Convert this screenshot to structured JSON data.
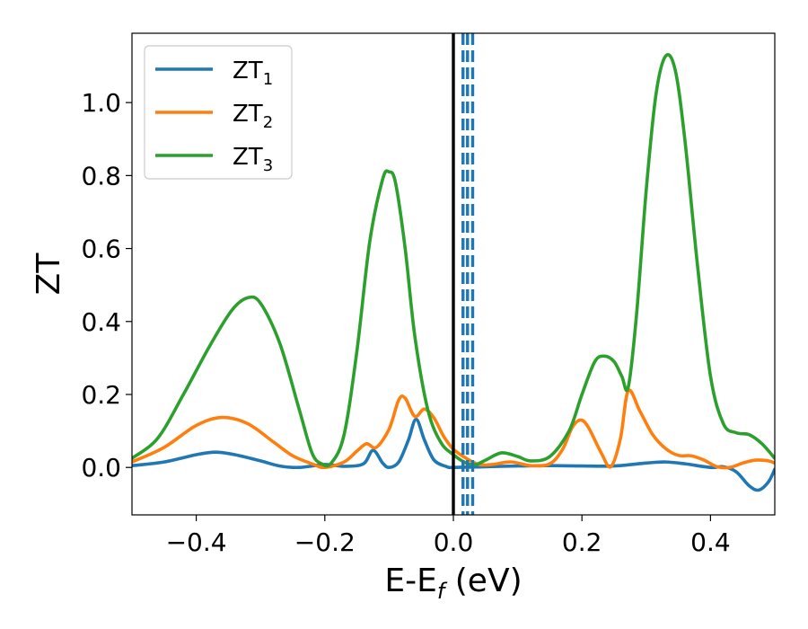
{
  "chart_data": {
    "type": "line",
    "xlabel": "E-E",
    "xlabel_sub": "f",
    "xlabel_unit": " (eV)",
    "ylabel": "ZT",
    "xlim": [
      -0.5,
      0.5
    ],
    "ylim": [
      -0.13,
      1.19
    ],
    "x_ticks": [
      -0.4,
      -0.2,
      0.0,
      0.2,
      0.4
    ],
    "x_tick_labels": [
      "−0.4",
      "−0.2",
      "0.0",
      "0.2",
      "0.4"
    ],
    "y_ticks": [
      0.0,
      0.2,
      0.4,
      0.6,
      0.8,
      1.0
    ],
    "y_tick_labels": [
      "0.0",
      "0.2",
      "0.4",
      "0.6",
      "0.8",
      "1.0"
    ],
    "grid": false,
    "legend_position": "top-left",
    "series": [
      {
        "name": "ZT",
        "name_sub": "1",
        "color": "#1f77b4",
        "points": [
          [
            -0.5,
            0.005
          ],
          [
            -0.45,
            0.015
          ],
          [
            -0.4,
            0.035
          ],
          [
            -0.37,
            0.042
          ],
          [
            -0.34,
            0.035
          ],
          [
            -0.3,
            0.018
          ],
          [
            -0.27,
            0.004
          ],
          [
            -0.24,
            0.0
          ],
          [
            -0.2,
            0.008
          ],
          [
            -0.17,
            0.003
          ],
          [
            -0.14,
            0.01
          ],
          [
            -0.125,
            0.047
          ],
          [
            -0.11,
            0.012
          ],
          [
            -0.1,
            0.0
          ],
          [
            -0.085,
            0.015
          ],
          [
            -0.07,
            0.075
          ],
          [
            -0.058,
            0.132
          ],
          [
            -0.045,
            0.075
          ],
          [
            -0.03,
            0.02
          ],
          [
            -0.01,
            0.002
          ],
          [
            0.0,
            0.0
          ],
          [
            0.05,
            0.002
          ],
          [
            0.1,
            0.004
          ],
          [
            0.15,
            0.005
          ],
          [
            0.2,
            0.004
          ],
          [
            0.25,
            0.004
          ],
          [
            0.3,
            0.012
          ],
          [
            0.33,
            0.015
          ],
          [
            0.36,
            0.01
          ],
          [
            0.4,
            0.0
          ],
          [
            0.42,
            0.002
          ],
          [
            0.44,
            -0.012
          ],
          [
            0.46,
            -0.05
          ],
          [
            0.475,
            -0.062
          ],
          [
            0.49,
            -0.04
          ],
          [
            0.5,
            -0.005
          ]
        ]
      },
      {
        "name": "ZT",
        "name_sub": "2",
        "color": "#ff7f0e",
        "points": [
          [
            -0.5,
            0.015
          ],
          [
            -0.45,
            0.055
          ],
          [
            -0.4,
            0.115
          ],
          [
            -0.36,
            0.137
          ],
          [
            -0.32,
            0.12
          ],
          [
            -0.28,
            0.07
          ],
          [
            -0.25,
            0.032
          ],
          [
            -0.22,
            0.01
          ],
          [
            -0.2,
            0.0
          ],
          [
            -0.17,
            0.015
          ],
          [
            -0.15,
            0.045
          ],
          [
            -0.135,
            0.065
          ],
          [
            -0.12,
            0.055
          ],
          [
            -0.1,
            0.105
          ],
          [
            -0.085,
            0.185
          ],
          [
            -0.075,
            0.19
          ],
          [
            -0.06,
            0.14
          ],
          [
            -0.045,
            0.16
          ],
          [
            -0.03,
            0.135
          ],
          [
            -0.015,
            0.085
          ],
          [
            0.0,
            0.05
          ],
          [
            0.02,
            0.025
          ],
          [
            0.04,
            0.008
          ],
          [
            0.06,
            0.008
          ],
          [
            0.09,
            0.015
          ],
          [
            0.12,
            0.005
          ],
          [
            0.15,
            0.01
          ],
          [
            0.17,
            0.05
          ],
          [
            0.185,
            0.11
          ],
          [
            0.198,
            0.13
          ],
          [
            0.21,
            0.11
          ],
          [
            0.23,
            0.04
          ],
          [
            0.245,
            0.002
          ],
          [
            0.26,
            0.08
          ],
          [
            0.272,
            0.21
          ],
          [
            0.29,
            0.155
          ],
          [
            0.31,
            0.09
          ],
          [
            0.33,
            0.052
          ],
          [
            0.35,
            0.033
          ],
          [
            0.37,
            0.032
          ],
          [
            0.39,
            0.02
          ],
          [
            0.41,
            0.002
          ],
          [
            0.43,
            0.0
          ],
          [
            0.45,
            0.012
          ],
          [
            0.47,
            0.02
          ],
          [
            0.49,
            0.018
          ],
          [
            0.5,
            0.012
          ]
        ]
      },
      {
        "name": "ZT",
        "name_sub": "3",
        "color": "#2ca02c",
        "points": [
          [
            -0.5,
            0.025
          ],
          [
            -0.46,
            0.08
          ],
          [
            -0.42,
            0.2
          ],
          [
            -0.38,
            0.33
          ],
          [
            -0.345,
            0.43
          ],
          [
            -0.32,
            0.465
          ],
          [
            -0.3,
            0.45
          ],
          [
            -0.27,
            0.34
          ],
          [
            -0.24,
            0.16
          ],
          [
            -0.22,
            0.04
          ],
          [
            -0.205,
            0.01
          ],
          [
            -0.19,
            0.012
          ],
          [
            -0.17,
            0.09
          ],
          [
            -0.15,
            0.32
          ],
          [
            -0.13,
            0.62
          ],
          [
            -0.11,
            0.79
          ],
          [
            -0.1,
            0.81
          ],
          [
            -0.09,
            0.78
          ],
          [
            -0.075,
            0.6
          ],
          [
            -0.06,
            0.36
          ],
          [
            -0.04,
            0.16
          ],
          [
            -0.02,
            0.07
          ],
          [
            0.0,
            0.035
          ],
          [
            0.02,
            0.012
          ],
          [
            0.035,
            0.008
          ],
          [
            0.05,
            0.02
          ],
          [
            0.075,
            0.04
          ],
          [
            0.1,
            0.03
          ],
          [
            0.12,
            0.018
          ],
          [
            0.15,
            0.03
          ],
          [
            0.18,
            0.1
          ],
          [
            0.2,
            0.2
          ],
          [
            0.22,
            0.29
          ],
          [
            0.235,
            0.305
          ],
          [
            0.25,
            0.29
          ],
          [
            0.262,
            0.25
          ],
          [
            0.272,
            0.22
          ],
          [
            0.285,
            0.42
          ],
          [
            0.3,
            0.76
          ],
          [
            0.315,
            1.02
          ],
          [
            0.33,
            1.127
          ],
          [
            0.345,
            1.09
          ],
          [
            0.36,
            0.9
          ],
          [
            0.38,
            0.55
          ],
          [
            0.4,
            0.25
          ],
          [
            0.42,
            0.12
          ],
          [
            0.44,
            0.095
          ],
          [
            0.46,
            0.09
          ],
          [
            0.48,
            0.065
          ],
          [
            0.5,
            0.025
          ]
        ]
      }
    ],
    "reference_lines": [
      {
        "x": 0.0,
        "color": "#000000",
        "style": "solid"
      },
      {
        "x": 0.015,
        "color": "#1f77b4",
        "style": "dashed"
      },
      {
        "x": 0.022,
        "color": "#1f77b4",
        "style": "dashed"
      },
      {
        "x": 0.03,
        "color": "#1f77b4",
        "style": "dashed"
      }
    ]
  }
}
